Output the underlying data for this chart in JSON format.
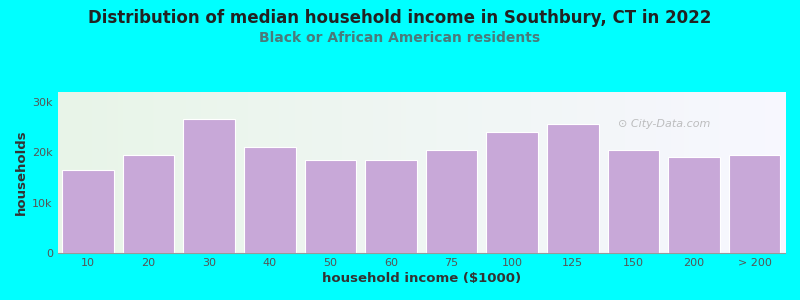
{
  "title": "Distribution of median household income in Southbury, CT in 2022",
  "subtitle": "Black or African American residents",
  "xlabel": "household income ($1000)",
  "ylabel": "households",
  "background_color": "#00FFFF",
  "bar_color": "#C8A8D8",
  "bar_edge_color": "#ffffff",
  "categories": [
    "10",
    "20",
    "30",
    "40",
    "50",
    "60",
    "75",
    "100",
    "125",
    "150",
    "200",
    "> 200"
  ],
  "values": [
    16500,
    19500,
    26500,
    21000,
    18500,
    18500,
    20500,
    24000,
    25500,
    20500,
    19000,
    19500
  ],
  "ylim": [
    0,
    32000
  ],
  "yticks": [
    0,
    10000,
    20000,
    30000
  ],
  "ytick_labels": [
    "0",
    "10k",
    "20k",
    "30k"
  ],
  "title_fontsize": 12,
  "subtitle_fontsize": 10,
  "axis_label_fontsize": 9.5,
  "tick_fontsize": 8,
  "title_color": "#222222",
  "subtitle_color": "#4a7a7a",
  "axis_label_color": "#333333",
  "watermark_text": "City-Data.com"
}
